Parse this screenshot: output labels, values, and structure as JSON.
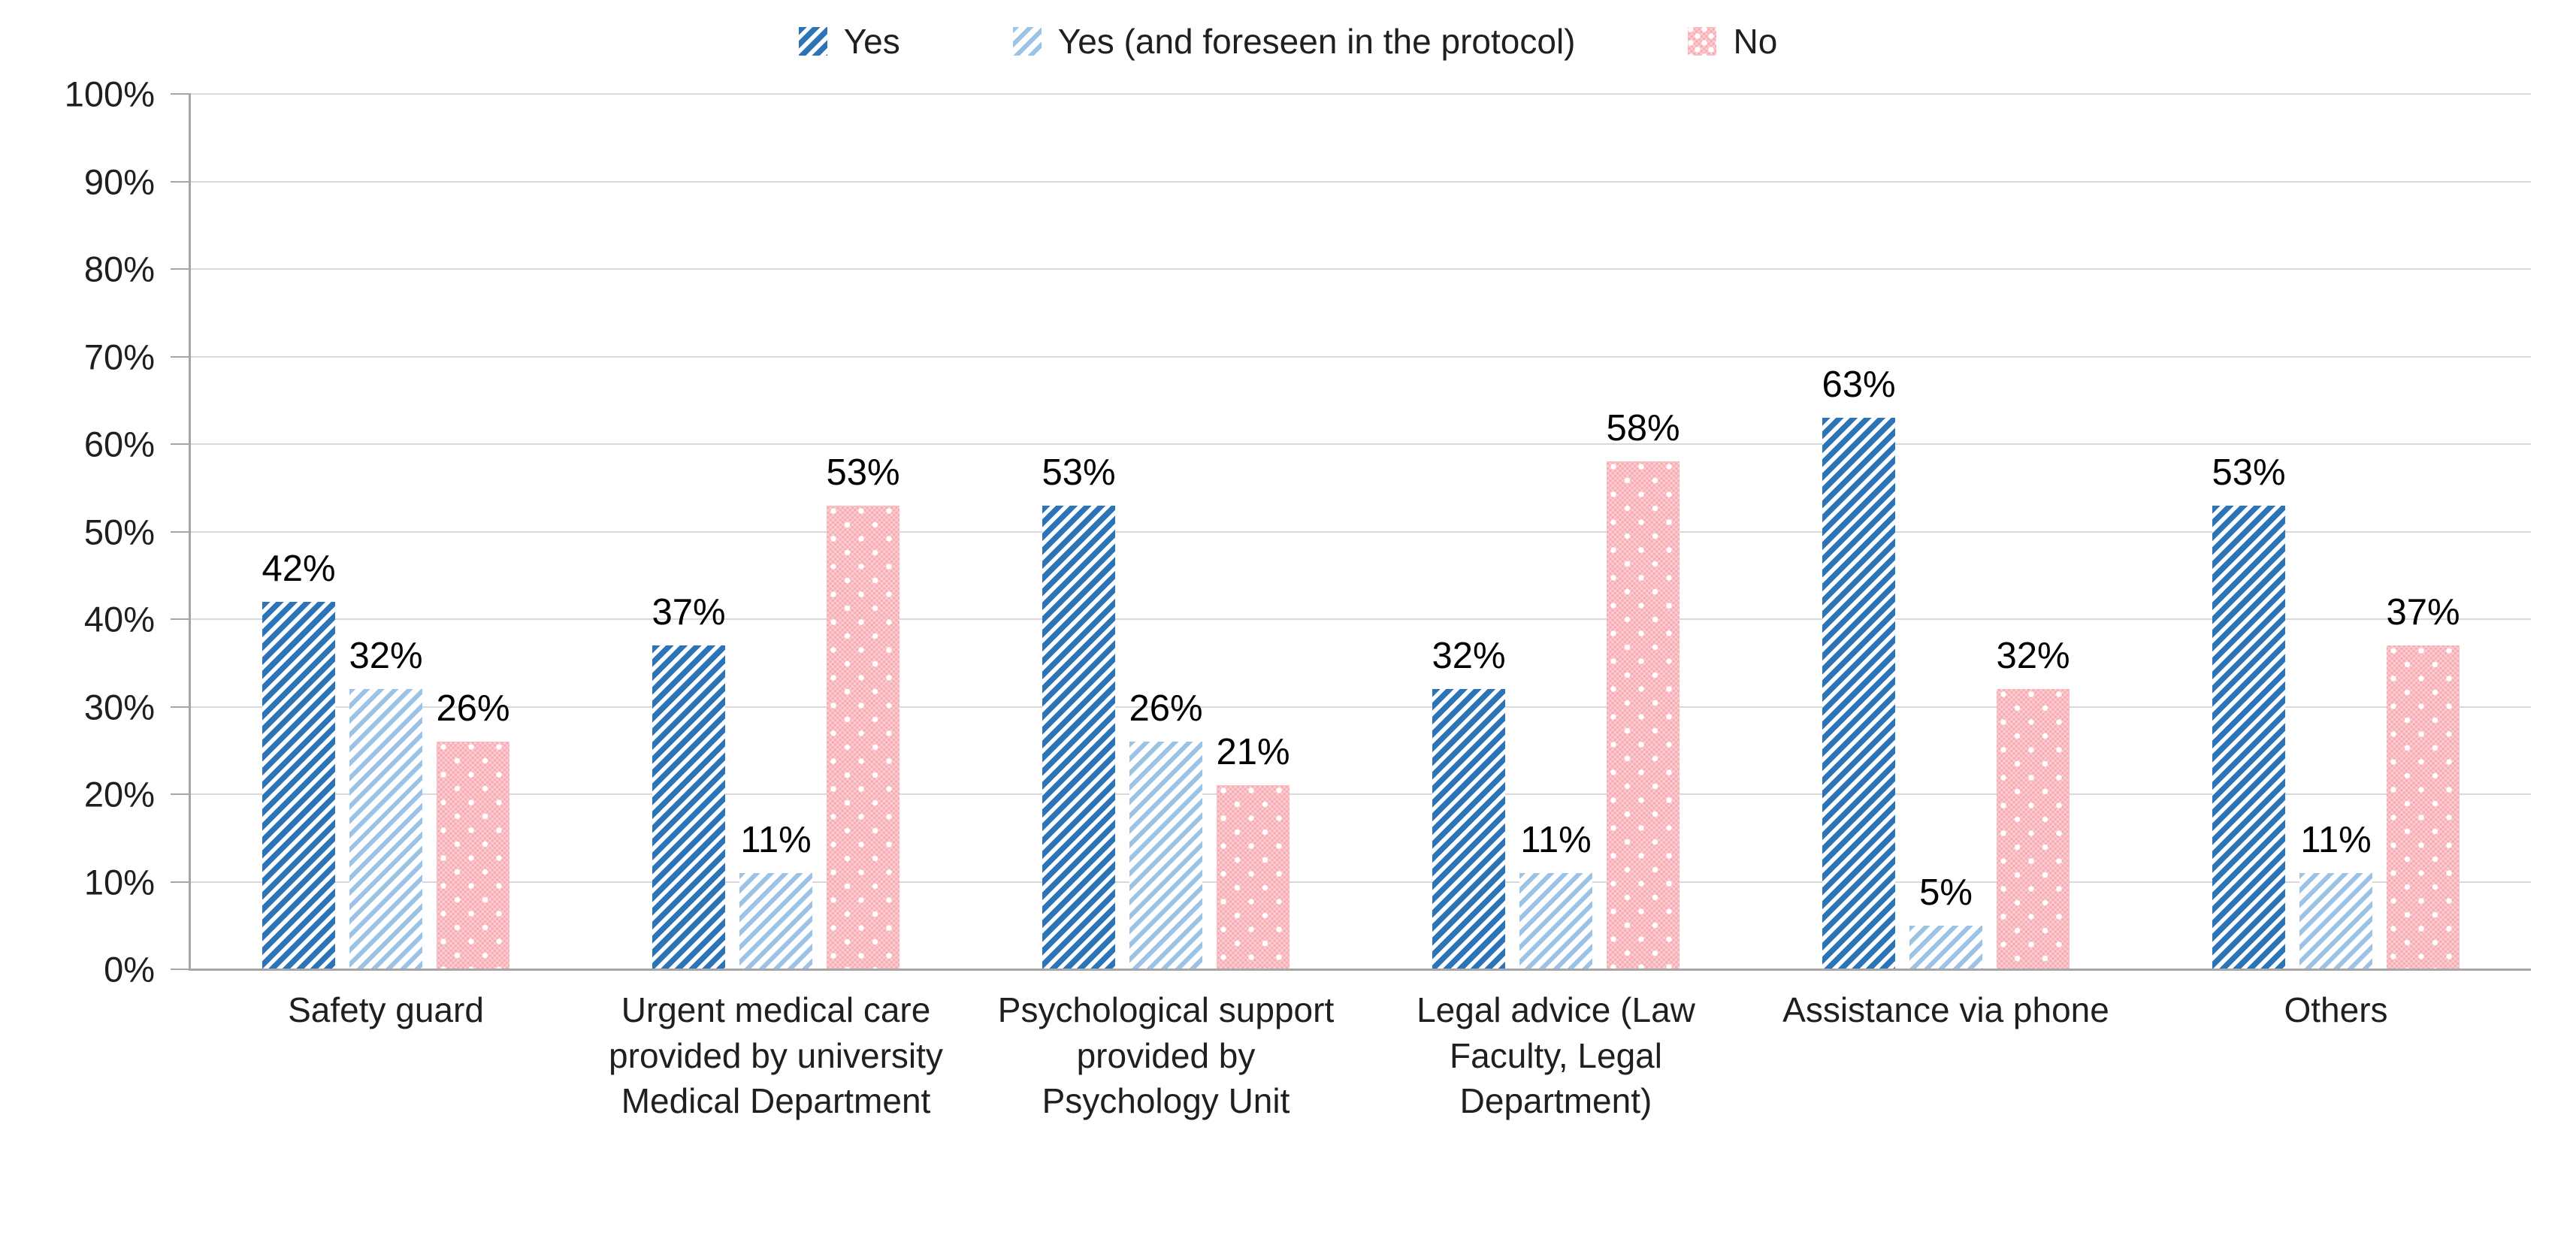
{
  "chart_data": {
    "type": "bar",
    "title": "",
    "categories": [
      "Safety guard",
      "Urgent medical care provided by university Medical Department",
      "Psychological support provided by Psychology Unit",
      "Legal advice (Law Faculty, Legal Department)",
      "Assistance via phone",
      "Others"
    ],
    "series": [
      {
        "name": "Yes",
        "pattern": "diagonal-dark",
        "color": "#2B74B8",
        "values": [
          42,
          37,
          53,
          32,
          63,
          53
        ]
      },
      {
        "name": "Yes (and foreseen in the protocol)",
        "pattern": "diagonal-light",
        "color": "#9CC3E6",
        "values": [
          32,
          11,
          26,
          11,
          5,
          11
        ]
      },
      {
        "name": "No",
        "pattern": "dotted-pink",
        "color": "#F8AAB2",
        "values": [
          26,
          53,
          21,
          58,
          32,
          37
        ]
      }
    ],
    "data_labels": true,
    "value_suffix": "%",
    "y_axis": {
      "min": 0,
      "max": 100,
      "step": 10,
      "tick_suffix": "%"
    },
    "grid": true,
    "legend_position": "top",
    "colors": {
      "gridline": "#D9D9D9",
      "axis": "#A6A6A6",
      "label_text": "#000000"
    }
  }
}
